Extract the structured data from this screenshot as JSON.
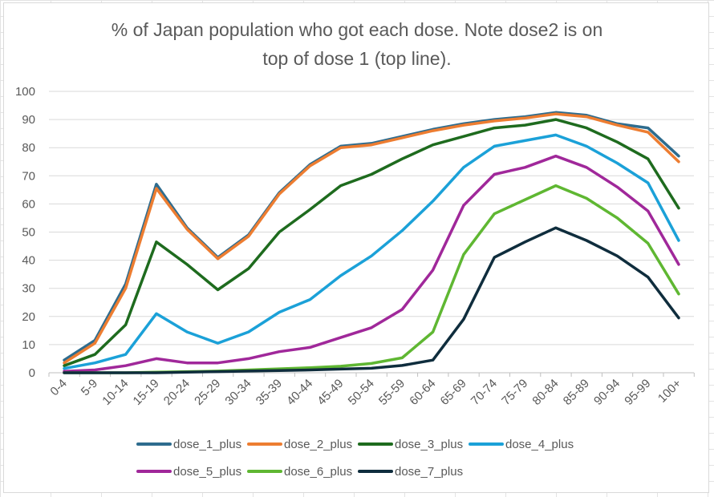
{
  "chart_data": {
    "type": "line",
    "title_line1": "% of Japan population who got each dose. Note dose2 is on",
    "title_line2": "top of dose 1 (top line).",
    "xlabel": "",
    "ylabel": "",
    "ylim": [
      0,
      100
    ],
    "yticks": [
      0,
      10,
      20,
      30,
      40,
      50,
      60,
      70,
      80,
      90,
      100
    ],
    "grid": true,
    "legend_position": "bottom",
    "categories": [
      "0-4",
      "5-9",
      "10-14",
      "15-19",
      "20-24",
      "25-29",
      "30-34",
      "35-39",
      "40-44",
      "45-49",
      "50-54",
      "55-59",
      "60-64",
      "65-69",
      "70-74",
      "75-79",
      "80-84",
      "85-89",
      "90-94",
      "95-99",
      "100+"
    ],
    "series": [
      {
        "name": "dose_1_plus",
        "color": "#2e6c8e",
        "values": [
          4.5,
          11.5,
          31.5,
          67,
          51.5,
          41,
          49,
          64,
          74,
          80.5,
          81.5,
          84,
          86.5,
          88.5,
          90,
          91,
          92.5,
          91.5,
          88.5,
          87,
          77
        ]
      },
      {
        "name": "dose_2_plus",
        "color": "#ed7d31",
        "values": [
          3.5,
          10.5,
          30,
          65.5,
          51,
          40.5,
          48.5,
          63.5,
          73.5,
          80,
          81,
          83.5,
          86,
          88,
          89.5,
          90.5,
          92,
          91,
          88,
          85.5,
          75
        ]
      },
      {
        "name": "dose_3_plus",
        "color": "#1e6b1e",
        "values": [
          2.5,
          6.5,
          17,
          46.5,
          38.5,
          29.5,
          37,
          50,
          58,
          66.5,
          70.5,
          76,
          81,
          84,
          87,
          88,
          90,
          87,
          82,
          76,
          58.5
        ]
      },
      {
        "name": "dose_4_plus",
        "color": "#1ba1d8",
        "values": [
          1.5,
          3.5,
          6.5,
          21,
          14.5,
          10.5,
          14.5,
          21.5,
          26,
          34.5,
          41.5,
          50.5,
          61,
          73,
          80.5,
          82.5,
          84.5,
          80.5,
          74.5,
          67.5,
          47
        ]
      },
      {
        "name": "dose_5_plus",
        "color": "#a0289a",
        "values": [
          0.5,
          1,
          2.5,
          5,
          3.5,
          3.5,
          5,
          7.5,
          9,
          12.5,
          16,
          22.5,
          36.5,
          59.5,
          70.5,
          73,
          77,
          73,
          66,
          57.5,
          38.5
        ]
      },
      {
        "name": "dose_6_plus",
        "color": "#5fb732",
        "values": [
          0,
          0,
          0,
          0.2,
          0.4,
          0.6,
          1,
          1.4,
          1.8,
          2.3,
          3.3,
          5.3,
          14.5,
          42,
          56.5,
          61.5,
          66.5,
          62,
          55,
          46,
          28
        ]
      },
      {
        "name": "dose_7_plus",
        "color": "#0f2d3d",
        "values": [
          0,
          0,
          0,
          0,
          0.2,
          0.4,
          0.6,
          0.8,
          1,
          1.3,
          1.6,
          2.6,
          4.5,
          19,
          41,
          46.5,
          51.5,
          47,
          41.5,
          34,
          19.5
        ]
      }
    ]
  }
}
